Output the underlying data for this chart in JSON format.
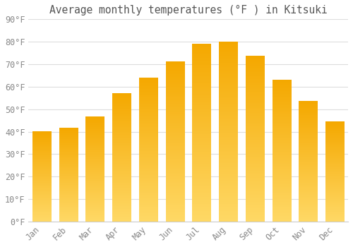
{
  "title": "Average monthly temperatures (°F ) in Kitsuki",
  "months": [
    "Jan",
    "Feb",
    "Mar",
    "Apr",
    "May",
    "Jun",
    "Jul",
    "Aug",
    "Sep",
    "Oct",
    "Nov",
    "Dec"
  ],
  "values": [
    40,
    41.5,
    46.5,
    57,
    64,
    71,
    79,
    80,
    73.5,
    63,
    53.5,
    44.5
  ],
  "bar_color_top": "#F5A800",
  "bar_color_bottom": "#FFD966",
  "background_color": "#ffffff",
  "plot_bg_color": "#ffffff",
  "grid_color": "#dddddd",
  "tick_label_color": "#888888",
  "title_color": "#555555",
  "ylim": [
    0,
    90
  ],
  "ytick_interval": 10,
  "title_fontsize": 10.5,
  "tick_fontsize": 8.5,
  "font_family": "monospace"
}
